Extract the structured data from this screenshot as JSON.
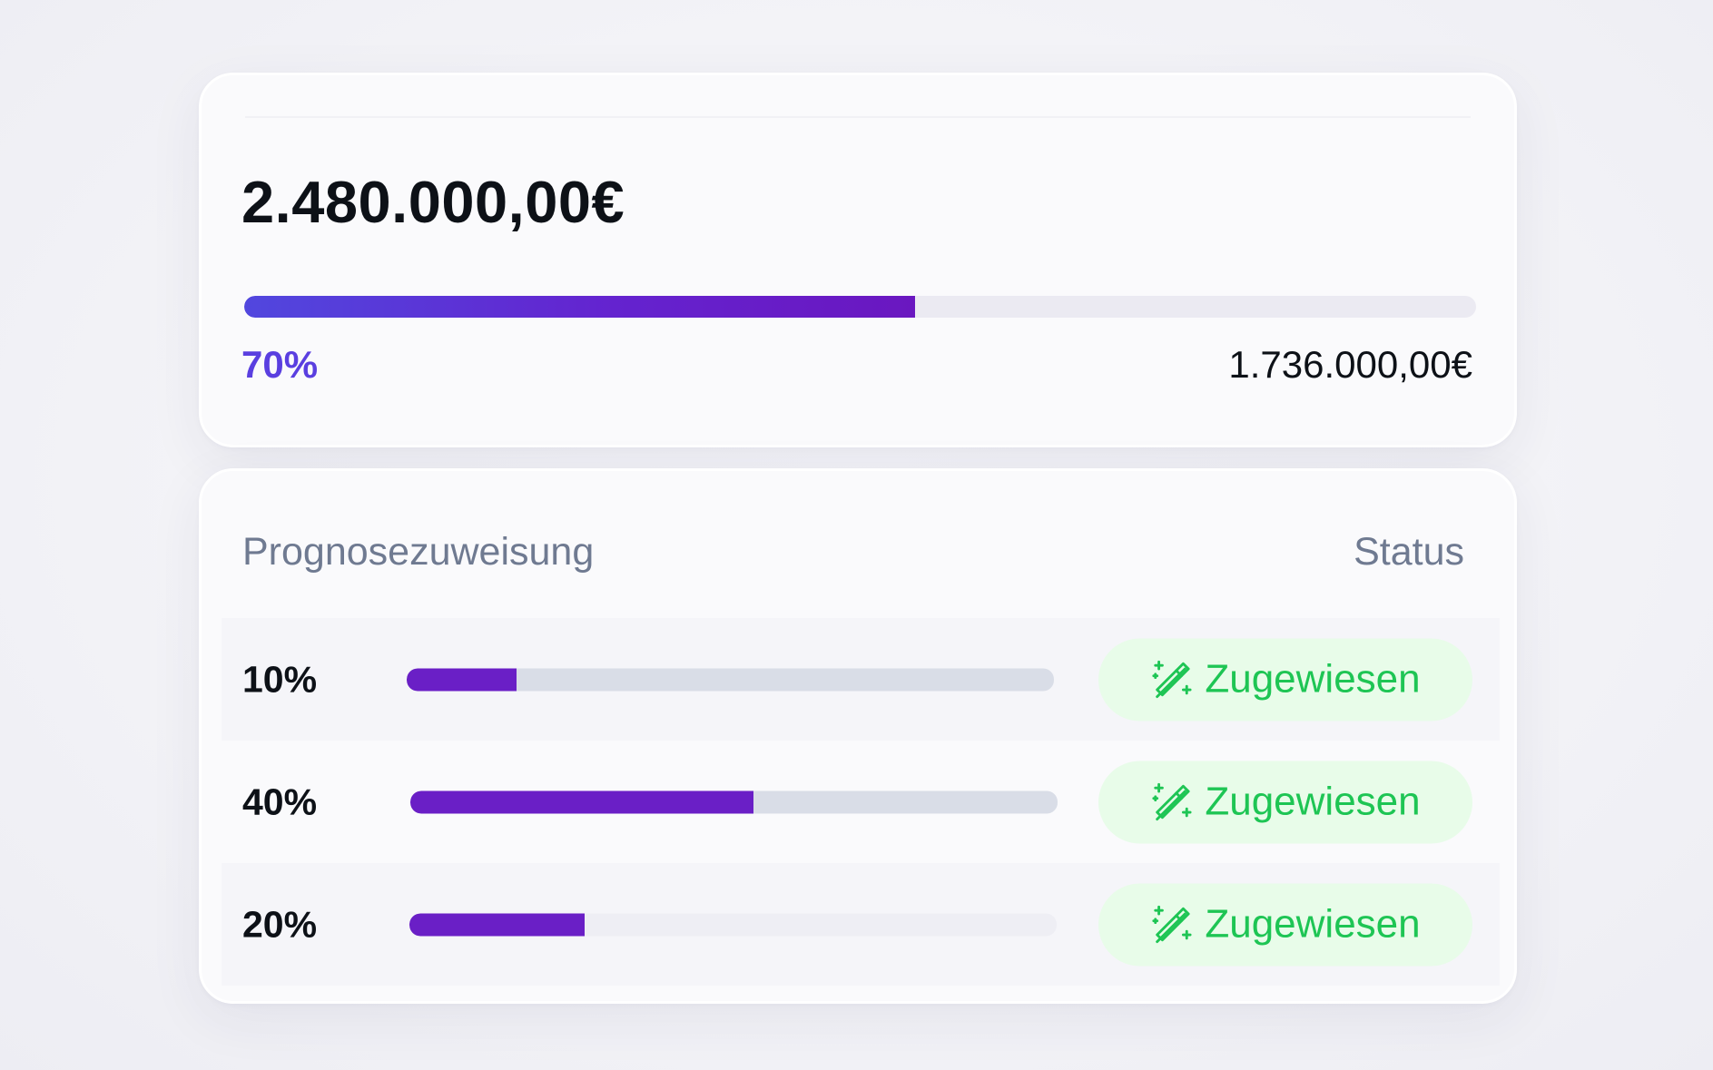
{
  "summary": {
    "total_amount": "2.480.000,00€",
    "progress_percent": 70,
    "progress_label": "70%",
    "assigned_amount": "1.736.000,00€"
  },
  "forecast": {
    "header_left": "Prognosezuweisung",
    "header_right": "Status",
    "rows": [
      {
        "percent_label": "10%",
        "fill": 0.17,
        "status": "Zugewiesen",
        "status_icon": "magic-wand-icon"
      },
      {
        "percent_label": "40%",
        "fill": 0.53,
        "status": "Zugewiesen",
        "status_icon": "magic-wand-icon"
      },
      {
        "percent_label": "20%",
        "fill": 0.27,
        "status": "Zugewiesen",
        "status_icon": "magic-wand-icon"
      }
    ]
  },
  "colors": {
    "accent_purple": "#6a1fc6",
    "gradient_start": "#5147de",
    "status_green": "#1ec554",
    "status_bg": "#e8fce9"
  }
}
